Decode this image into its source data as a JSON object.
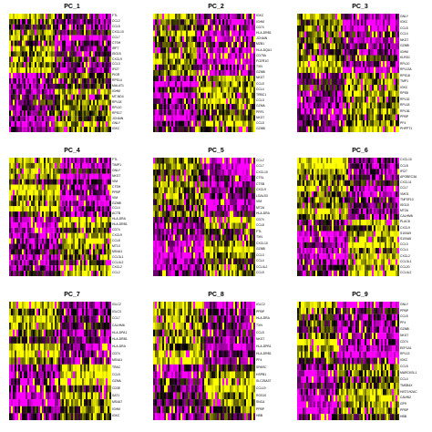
{
  "colors": {
    "low": "#ff00ff",
    "mid": "#000000",
    "high": "#ffff00"
  },
  "chart_data": [
    {
      "type": "heatmap",
      "title": "PC_1",
      "genes": [
        "FTL",
        "CCL2",
        "CCL5",
        "CXCL10",
        "CCL7",
        "CTSH",
        "IRF7",
        "ISG15",
        "CXCL9",
        "CCL3",
        "IFI27",
        "PIGR",
        "RPS14",
        "MALAT1",
        "IGHM",
        "MT-ND4",
        "RPL18",
        "RPL10",
        "RPS17",
        "JCHAIN",
        "GNLY",
        "IGKC"
      ]
    },
    {
      "type": "heatmap",
      "title": "PC_2",
      "genes": [
        "IGKC",
        "IGHM",
        "CD74",
        "HLA-DRB1",
        "JCHAIN",
        "MZB1",
        "HLA-DQA1",
        "CD79A",
        "FCER1G",
        "TXN",
        "GZMB",
        "NKG7",
        "CCL5",
        "CCL4",
        "TRBC1",
        "CCL3",
        "GZMA",
        "PRF1",
        "NKG7",
        "CCL5",
        "GZMB"
      ]
    },
    {
      "type": "heatmap",
      "title": "PC_3",
      "genes": [
        "GNLY",
        "IGKC",
        "CCL5",
        "CCL4",
        "NKG7",
        "GZMB",
        "IGHM",
        "KLRD1",
        "RPL10",
        "RPL13A",
        "RPS18",
        "TMP1",
        "IGKC",
        "RPS8",
        "RPL32",
        "RPL18",
        "RPL36",
        "PPBP",
        "PF4",
        "PHPPT1"
      ]
    },
    {
      "type": "heatmap",
      "title": "PC_4",
      "genes": [
        "FTL",
        "TIMP1",
        "GNLY",
        "NKG7",
        "VIM",
        "CTSH",
        "PPBP",
        "VIM",
        "GZMB",
        "CCL4",
        "ACTB",
        "HLA-DRA",
        "HLA-DRB1",
        "CD74",
        "CXCL9",
        "CCL8",
        "MT1X",
        "MS4A1",
        "CCL3L1",
        "CCL4L2",
        "CXCL2",
        "CCL2"
      ]
    },
    {
      "type": "heatmap",
      "title": "PC_5",
      "genes": [
        "CCL2",
        "CCL7",
        "CXCL10",
        "CTSL",
        "CTSB",
        "CXCL9",
        "LGALS3",
        "VIM",
        "MT2A",
        "HLA-DRA",
        "CD74",
        "CCL8",
        "FTL",
        "TXN",
        "CXCL10",
        "GZMB",
        "CCL3",
        "CCL4",
        "CCL4L2",
        "CCL5"
      ]
    },
    {
      "type": "heatmap",
      "title": "PC_6",
      "genes": [
        "CXCL10",
        "CCL8",
        "IFI27",
        "APOBEC3A",
        "CXCL11",
        "CCL7",
        "VMO1",
        "TNFSF10",
        "ISG15",
        "MT2A",
        "CALHM6",
        "PLAC8",
        "CXCL9",
        "S100A9",
        "S100A8",
        "CCL3",
        "CCL4",
        "CXCL2",
        "CCL3L1",
        "CCL20",
        "CCL4L2"
      ]
    },
    {
      "type": "heatmap",
      "title": "PC_7",
      "genes": [
        "IGLC2",
        "IGLC3",
        "CCL7",
        "CALHM6",
        "HLA-DPA1",
        "HLA-DRB1",
        "HLA-DRA",
        "CD74",
        "MS4A1",
        "TRAC",
        "CCL5",
        "GZMA",
        "CD3E",
        "SAT1",
        "MS4A7",
        "IGHM",
        "IGKC"
      ]
    },
    {
      "type": "heatmap",
      "title": "PC_8",
      "genes": [
        "IGLC2",
        "PPBP",
        "HLA-DRA",
        "TXN",
        "CCL5",
        "NKG7",
        "HLA-DPB1",
        "HLA-DRB1",
        "PF4",
        "SPARC",
        "HSPB1",
        "SLC25A37",
        "CCL19",
        "RGS10",
        "SNCA",
        "PPBP",
        "HBB"
      ]
    },
    {
      "type": "heatmap",
      "title": "PC_9",
      "genes": [
        "GNLY",
        "PPBP",
        "CCL5",
        "PF4",
        "GZMB",
        "NKG7",
        "CD74",
        "EEF1A1",
        "RPL13",
        "IGKC",
        "CCL5",
        "MARCKSL1",
        "CCL4",
        "TMSB4X",
        "HIST1H2AC",
        "CAVIN2",
        "GP9",
        "PPBP",
        "HBB"
      ]
    }
  ]
}
